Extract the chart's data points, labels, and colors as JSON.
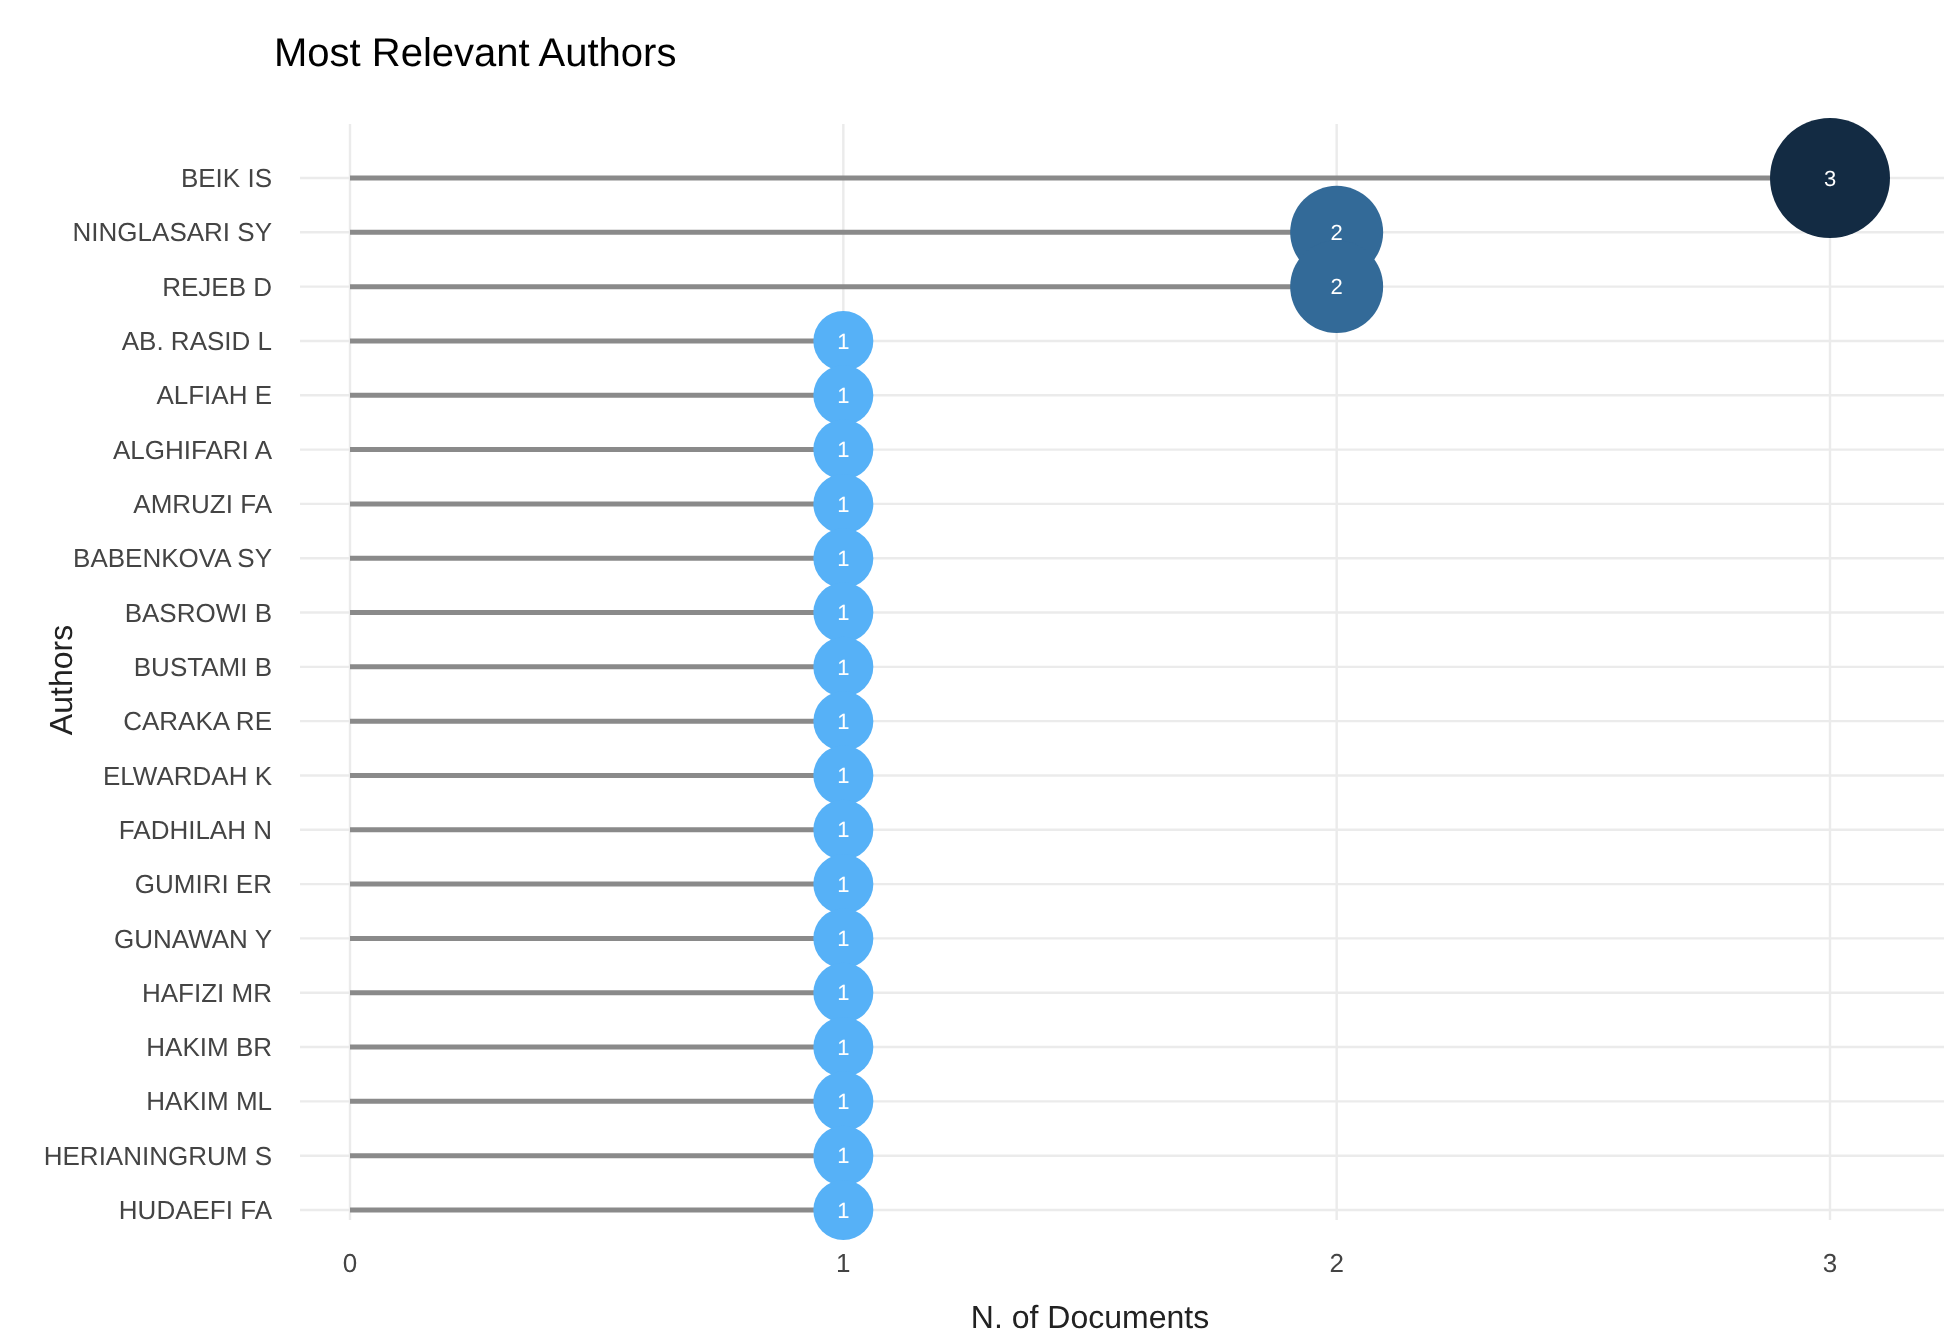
{
  "chart_data": {
    "type": "lollipop",
    "title": "Most Relevant Authors",
    "xlabel": "N. of Documents",
    "ylabel": "Authors",
    "orientation": "horizontal",
    "categories": [
      "BEIK IS",
      "NINGLASARI SY",
      "REJEB D",
      "AB. RASID L",
      "ALFIAH E",
      "ALGHIFARI A",
      "AMRUZI FA",
      "BABENKOVA SY",
      "BASROWI B",
      "BUSTAMI B",
      "CARAKA RE",
      "ELWARDAH K",
      "FADHILAH N",
      "GUMIRI ER",
      "GUNAWAN Y",
      "HAFIZI MR",
      "HAKIM BR",
      "HAKIM ML",
      "HERIANINGRUM S",
      "HUDAEFI FA"
    ],
    "values": [
      3,
      2,
      2,
      1,
      1,
      1,
      1,
      1,
      1,
      1,
      1,
      1,
      1,
      1,
      1,
      1,
      1,
      1,
      1,
      1
    ],
    "colors": [
      "#132b43",
      "#336a98",
      "#336a98",
      "#56b1f7",
      "#56b1f7",
      "#56b1f7",
      "#56b1f7",
      "#56b1f7",
      "#56b1f7",
      "#56b1f7",
      "#56b1f7",
      "#56b1f7",
      "#56b1f7",
      "#56b1f7",
      "#56b1f7",
      "#56b1f7",
      "#56b1f7",
      "#56b1f7",
      "#56b1f7",
      "#56b1f7"
    ],
    "sizes": [
      1,
      0.6,
      0.6,
      0.25,
      0.25,
      0.25,
      0.25,
      0.25,
      0.25,
      0.25,
      0.25,
      0.25,
      0.25,
      0.25,
      0.25,
      0.25,
      0.25,
      0.25,
      0.25,
      0.25
    ],
    "xlim": [
      0,
      3
    ],
    "xticks": [
      0,
      1,
      2,
      3
    ],
    "grid": true,
    "data_labels": true
  }
}
